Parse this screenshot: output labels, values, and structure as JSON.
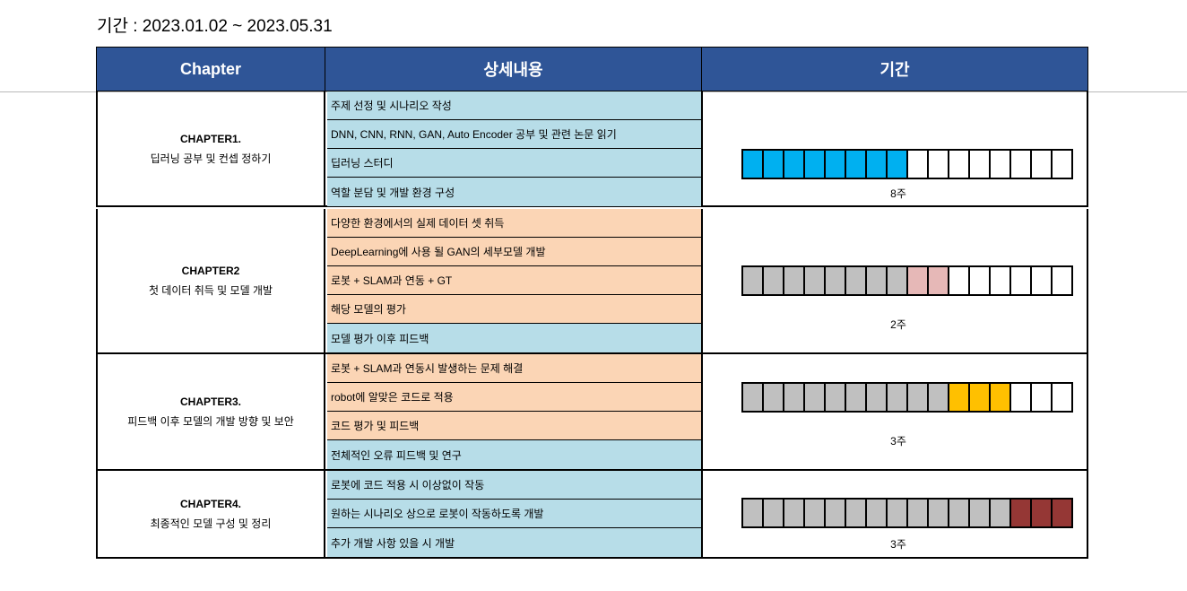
{
  "period": "기간 : 2023.01.02 ~ 2023.05.31",
  "header": {
    "chapter": "Chapter",
    "detail": "상세내용",
    "duration": "기간"
  },
  "colors": {
    "header_bg": "#2f5597",
    "detail_blue": "#b7dde8",
    "detail_peach": "#fbd5b5",
    "empty": "#ffffff",
    "done": "#c0c0c0",
    "ch1": "#00b0f0",
    "ch2": "#e6b8b7",
    "ch3": "#ffc000",
    "ch4": "#953735"
  },
  "chapters": [
    {
      "id": "CHAPTER1.",
      "title": "딥러닝 공부 및 컨셉 정하기",
      "weeks": "8주",
      "details": [
        {
          "text": "주제 선정 및 시나리오 작성",
          "tone": "blue"
        },
        {
          "text": "DNN, CNN, RNN, GAN, Auto Encoder 공부 및 관련 논문 읽기",
          "tone": "blue"
        },
        {
          "text": "딥러닝 스터디",
          "tone": "blue"
        },
        {
          "text": "역할 분담 및 개발 환경 구성",
          "tone": "blue"
        }
      ],
      "bar": {
        "cells": 16,
        "done": 0,
        "active": 8,
        "active_color": "ch1"
      }
    },
    {
      "id": "CHAPTER2",
      "title": "첫 데이터 취득 및 모델 개발",
      "weeks": "2주",
      "details": [
        {
          "text": "다양한 환경에서의 실제 데이터 셋 취득",
          "tone": "peach"
        },
        {
          "text": "DeepLearning에 사용 될 GAN의 세부모델 개발",
          "tone": "peach"
        },
        {
          "text": "로봇 + SLAM과 연동 + GT",
          "tone": "peach"
        },
        {
          "text": "해당 모델의 평가",
          "tone": "peach"
        },
        {
          "text": "모델 평가 이후 피드백",
          "tone": "blue"
        }
      ],
      "bar": {
        "cells": 16,
        "done": 8,
        "active": 2,
        "active_color": "ch2"
      }
    },
    {
      "id": "CHAPTER3.",
      "title": "피드백 이후 모델의 개발 방향 및 보안",
      "weeks": "3주",
      "details": [
        {
          "text": "로봇 + SLAM과 연동시 발생하는 문제 해결",
          "tone": "peach"
        },
        {
          "text": "robot에 알맞은 코드로 적용",
          "tone": "peach"
        },
        {
          "text": "코드 평가 및 피드백",
          "tone": "peach"
        },
        {
          "text": "전체적인 오류 피드백 및 연구",
          "tone": "blue"
        }
      ],
      "bar": {
        "cells": 16,
        "done": 10,
        "active": 3,
        "active_color": "ch3"
      }
    },
    {
      "id": "CHAPTER4.",
      "title": "최종적인 모델 구성 및 정리",
      "weeks": "3주",
      "details": [
        {
          "text": "로봇에 코드 적용 시 이상없이 작동",
          "tone": "blue"
        },
        {
          "text": "원하는 시나리오 상으로 로봇이 작동하도록 개발",
          "tone": "blue"
        },
        {
          "text": "추가 개발 사항 있을 시 개발",
          "tone": "blue"
        }
      ],
      "bar": {
        "cells": 16,
        "done": 13,
        "active": 3,
        "active_color": "ch4"
      }
    }
  ]
}
